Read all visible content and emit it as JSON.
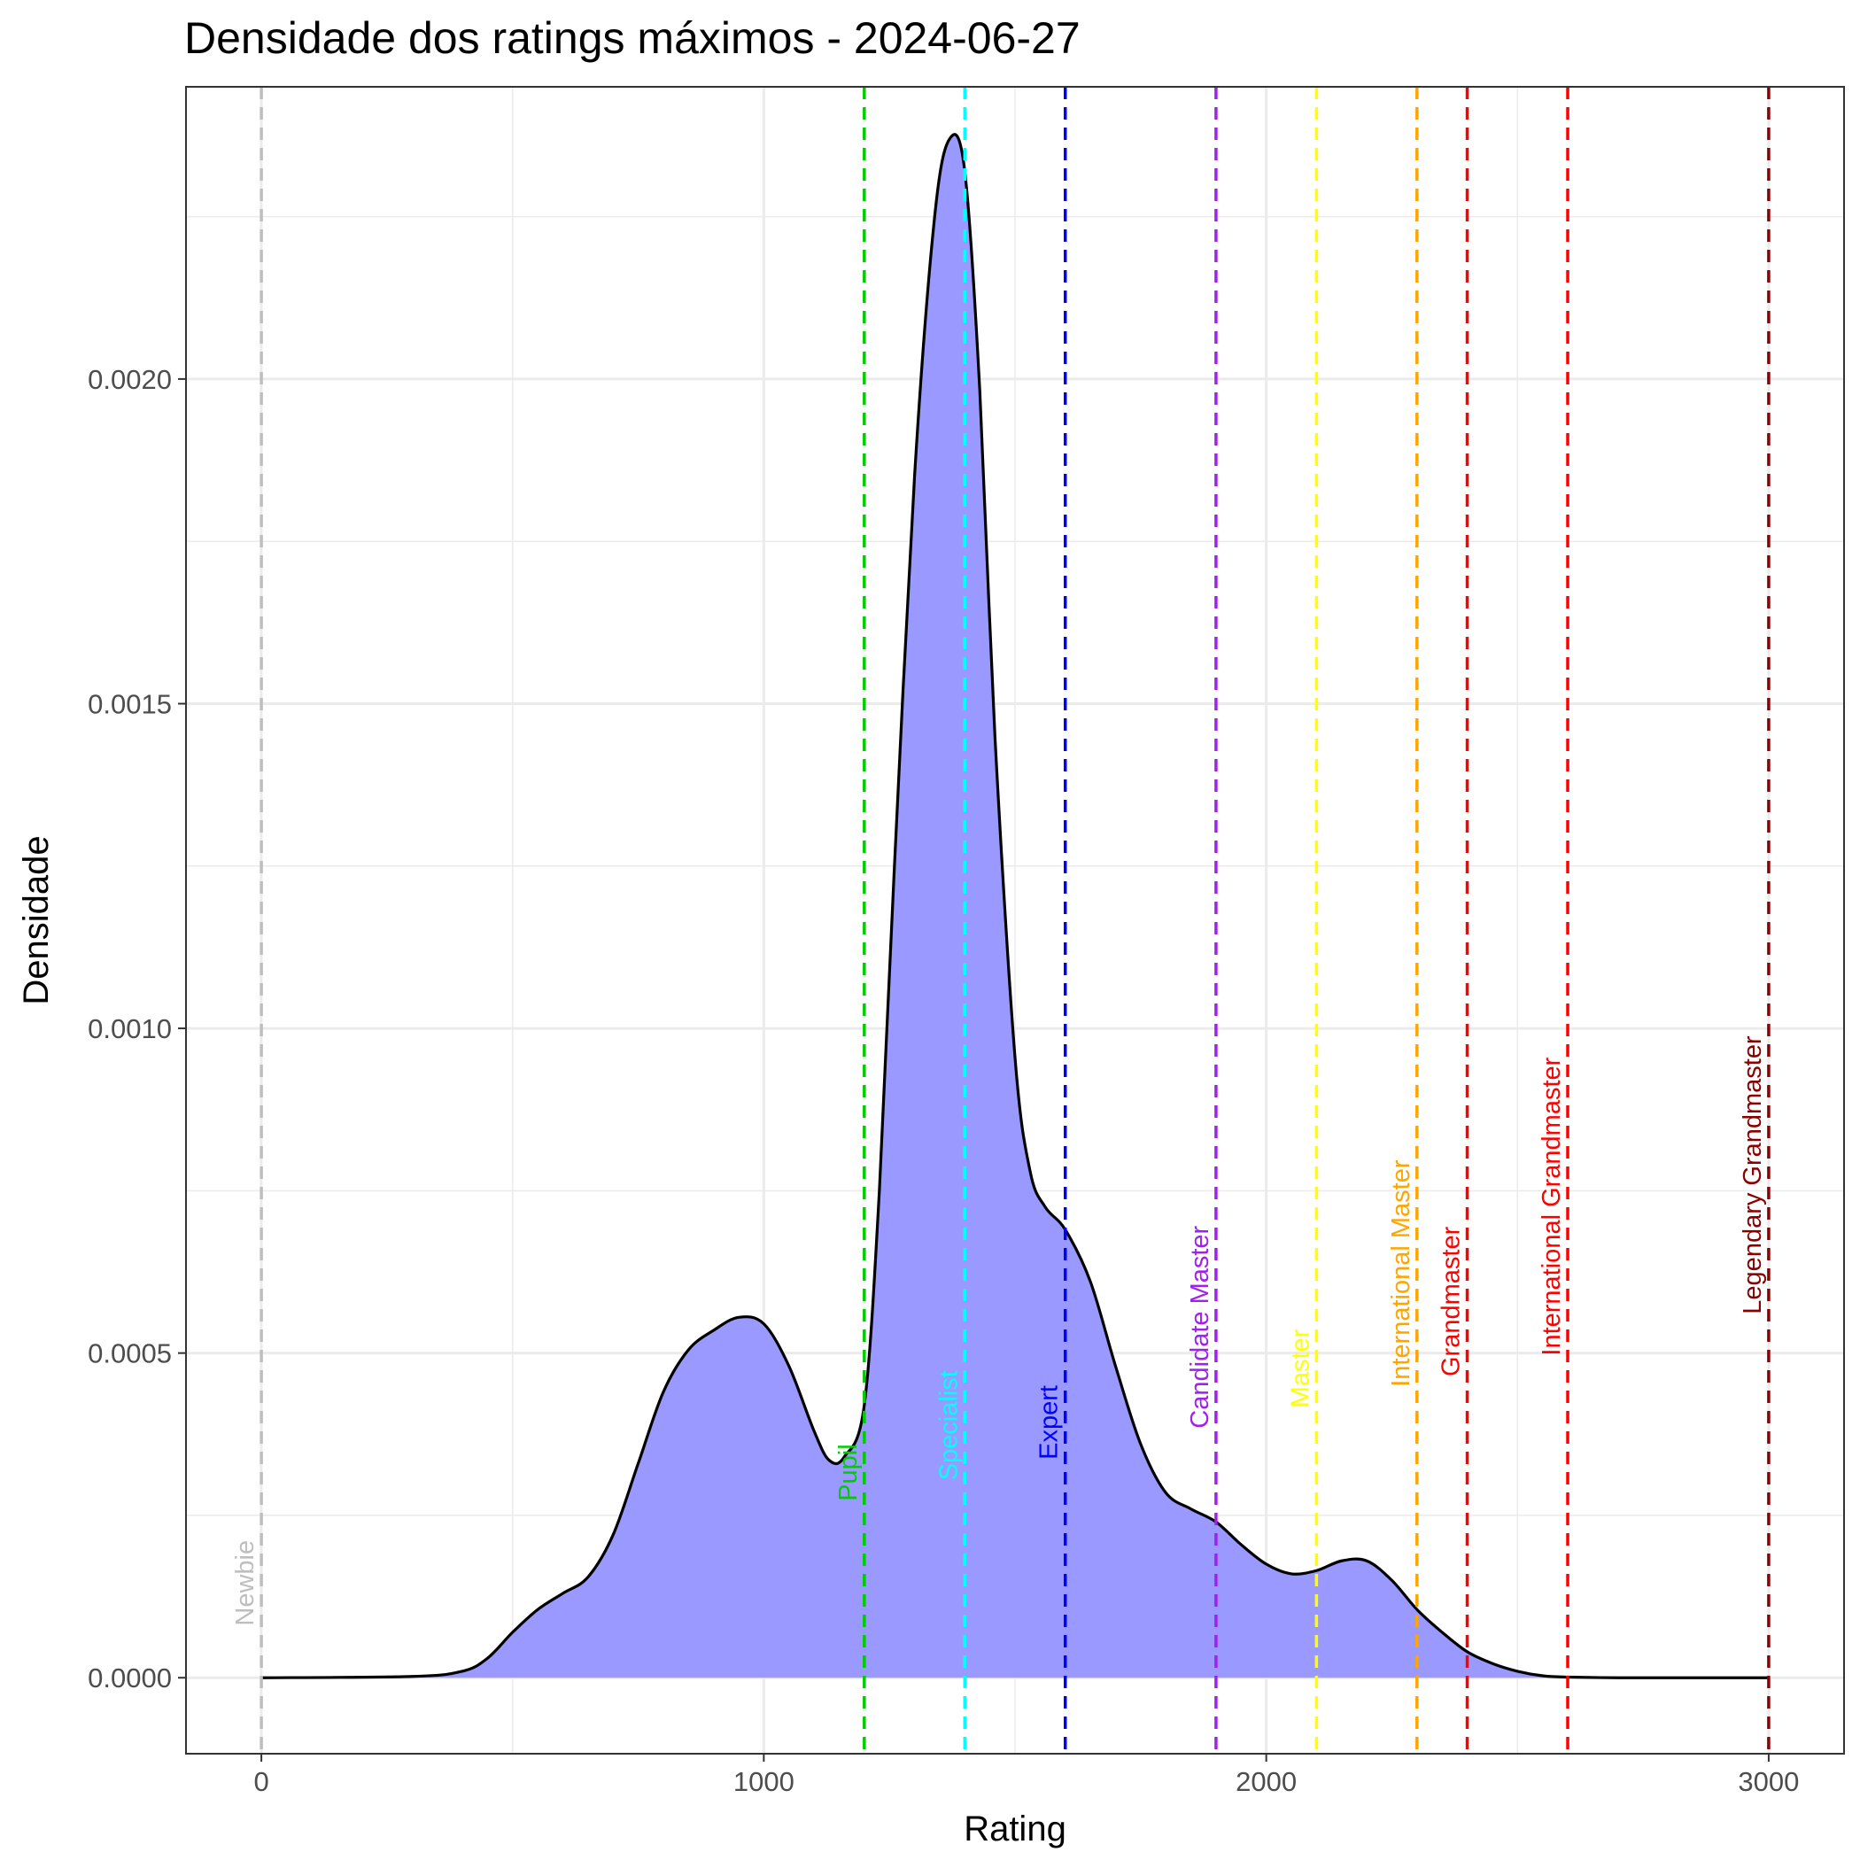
{
  "chart_data": {
    "type": "area",
    "title": "Densidade dos ratings máximos - 2024-06-27",
    "xlabel": "Rating",
    "ylabel": "Densidade",
    "xlim": [
      -150,
      3150
    ],
    "ylim": [
      -0.000117,
      0.00245
    ],
    "x_ticks": [
      0,
      1000,
      2000,
      3000
    ],
    "x_tick_labels": [
      "0",
      "1000",
      "2000",
      "3000"
    ],
    "y_ticks": [
      0,
      0.0005,
      0.001,
      0.0015,
      0.002
    ],
    "y_tick_labels": [
      "0.0000",
      "0.0005",
      "0.0010",
      "0.0015",
      "0.0020"
    ],
    "grid": true,
    "legend": "none",
    "fill_color": "#9999FF",
    "line_color": "#000000",
    "series": [
      {
        "x": [
          0,
          300,
          400,
          450,
          500,
          550,
          600,
          650,
          700,
          750,
          800,
          850,
          900,
          950,
          1000,
          1050,
          1100,
          1130,
          1160,
          1200,
          1230,
          1260,
          1300,
          1340,
          1370,
          1400,
          1430,
          1460,
          1500,
          1530,
          1560,
          1600,
          1650,
          1700,
          1750,
          1800,
          1850,
          1900,
          1950,
          2000,
          2050,
          2100,
          2150,
          2200,
          2250,
          2300,
          2350,
          2400,
          2450,
          2500,
          2550,
          2600,
          2700,
          2800,
          3000
        ],
        "y": [
          0,
          2e-06,
          1e-05,
          3e-05,
          7e-05,
          0.000105,
          0.00013,
          0.000155,
          0.00022,
          0.00033,
          0.00044,
          0.000505,
          0.000535,
          0.000555,
          0.000545,
          0.00048,
          0.00038,
          0.000335,
          0.00034,
          0.00042,
          0.00075,
          0.00125,
          0.00185,
          0.00225,
          0.00237,
          0.00232,
          0.00198,
          0.00145,
          0.000955,
          0.00078,
          0.000725,
          0.00069,
          0.00061,
          0.00048,
          0.00036,
          0.000285,
          0.00026,
          0.00024,
          0.000205,
          0.000175,
          0.00016,
          0.000165,
          0.00018,
          0.00018,
          0.00015,
          0.000105,
          7e-05,
          4e-05,
          2.2e-05,
          1e-05,
          3e-06,
          1e-06,
          0,
          0,
          0
        ]
      }
    ],
    "annotations": [
      {
        "label": "Newbie",
        "x": 0,
        "color": "#BEBEBE"
      },
      {
        "label": "Pupil",
        "x": 1200,
        "color": "#00CD00"
      },
      {
        "label": "Specialist",
        "x": 1400,
        "color": "#00FFFF"
      },
      {
        "label": "Expert",
        "x": 1600,
        "color": "#0000FF"
      },
      {
        "label": "Candidate Master",
        "x": 1900,
        "color": "#A020F0"
      },
      {
        "label": "Master",
        "x": 2100,
        "color": "#FFFF00"
      },
      {
        "label": "International Master",
        "x": 2300,
        "color": "#FFA500"
      },
      {
        "label": "Grandmaster",
        "x": 2400,
        "color": "#FF0000"
      },
      {
        "label": "International Grandmaster",
        "x": 2600,
        "color": "#FF0000"
      },
      {
        "label": "Legendary Grandmaster",
        "x": 3000,
        "color": "#8B0000"
      }
    ]
  }
}
